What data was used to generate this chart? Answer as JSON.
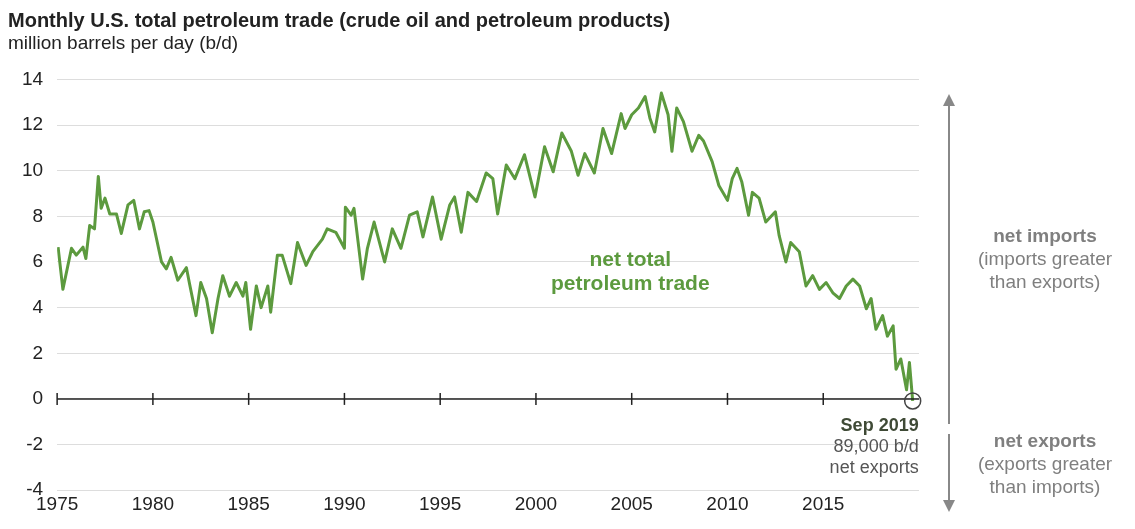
{
  "chart_data": {
    "type": "line",
    "title": "Monthly U.S. total petroleum trade (crude oil and petroleum products)",
    "ylabel": "million barrels per day (b/d)",
    "xlim": [
      1975,
      2020
    ],
    "xticks": [
      1975,
      1980,
      1985,
      1990,
      1995,
      2000,
      2005,
      2010,
      2015
    ],
    "ylim": [
      -4,
      14
    ],
    "yticks": [
      -4,
      -2,
      0,
      2,
      4,
      6,
      8,
      10,
      12,
      14
    ],
    "grid": "y",
    "legend": false,
    "ref_lines": [
      {
        "axis": "y",
        "value": 0,
        "label": null,
        "color": "#222222"
      }
    ],
    "annotations": [
      {
        "text": "Sep 2019\n89,000 b/d\nnet exports",
        "x": 2019.67,
        "y": -0.089
      },
      "net imports\n(imports greater\nthan exports)",
      "net exports\n(exports greater\nthan imports)"
    ],
    "series": [
      {
        "name": "net total\npetroleum trade",
        "color": "#5c9a3e",
        "x": [
          1975.05,
          1975.3,
          1975.75,
          1976.0,
          1976.35,
          1976.5,
          1976.7,
          1976.95,
          1977.15,
          1977.3,
          1977.5,
          1977.75,
          1978.1,
          1978.35,
          1978.7,
          1979.0,
          1979.3,
          1979.55,
          1979.8,
          1980.0,
          1980.45,
          1980.7,
          1980.95,
          1981.3,
          1981.75,
          1981.9,
          1982.25,
          1982.5,
          1982.8,
          1983.1,
          1983.4,
          1983.65,
          1984.0,
          1984.35,
          1984.7,
          1984.85,
          1985.1,
          1985.4,
          1985.65,
          1986.0,
          1986.15,
          1986.5,
          1986.75,
          1987.2,
          1987.55,
          1988.0,
          1988.35,
          1988.85,
          1989.1,
          1989.55,
          1990.0,
          1990.05,
          1990.35,
          1990.5,
          1990.95,
          1991.2,
          1991.55,
          1992.1,
          1992.5,
          1992.95,
          1993.4,
          1993.8,
          1994.1,
          1994.6,
          1995.05,
          1995.5,
          1995.75,
          1996.1,
          1996.45,
          1996.9,
          1997.4,
          1997.75,
          1998.0,
          1998.45,
          1998.9,
          1999.4,
          1999.95,
          2000.45,
          2000.9,
          2001.35,
          2001.85,
          2002.2,
          2002.55,
          2003.05,
          2003.5,
          2003.95,
          2004.45,
          2004.65,
          2005.0,
          2005.35,
          2005.7,
          2005.95,
          2006.2,
          2006.55,
          2006.9,
          2007.1,
          2007.35,
          2007.7,
          2008.15,
          2008.5,
          2008.75,
          2009.2,
          2009.55,
          2010.0,
          2010.25,
          2010.5,
          2010.75,
          2011.1,
          2011.3,
          2011.65,
          2012.0,
          2012.5,
          2012.7,
          2013.05,
          2013.3,
          2013.75,
          2014.1,
          2014.45,
          2014.8,
          2015.15,
          2015.5,
          2015.85,
          2016.2,
          2016.55,
          2016.9,
          2017.25,
          2017.5,
          2017.75,
          2018.1,
          2018.35,
          2018.65,
          2018.8,
          2019.05,
          2019.35,
          2019.5,
          2019.67
        ],
        "values": [
          6.65,
          4.8,
          6.6,
          6.3,
          6.65,
          6.15,
          7.6,
          7.45,
          9.75,
          8.35,
          8.8,
          8.1,
          8.1,
          7.25,
          8.5,
          8.7,
          7.45,
          8.2,
          8.25,
          7.75,
          6.0,
          5.7,
          6.2,
          5.2,
          5.75,
          5.1,
          3.65,
          5.1,
          4.4,
          2.9,
          4.4,
          5.4,
          4.5,
          5.1,
          4.5,
          5.1,
          3.05,
          4.95,
          4.0,
          4.95,
          3.8,
          6.3,
          6.3,
          5.05,
          6.85,
          5.85,
          6.45,
          7.0,
          7.45,
          7.3,
          6.6,
          8.4,
          8.05,
          8.35,
          5.25,
          6.6,
          7.75,
          6.0,
          7.45,
          6.6,
          8.05,
          8.2,
          7.1,
          8.85,
          7.0,
          8.5,
          8.85,
          7.3,
          9.05,
          8.65,
          9.9,
          9.65,
          8.1,
          10.25,
          9.65,
          10.7,
          8.85,
          11.05,
          9.95,
          11.65,
          10.85,
          9.8,
          10.75,
          9.9,
          11.85,
          10.75,
          12.5,
          11.85,
          12.45,
          12.75,
          13.25,
          12.3,
          11.7,
          13.4,
          12.45,
          10.85,
          12.75,
          12.15,
          10.85,
          11.55,
          11.3,
          10.4,
          9.35,
          8.7,
          9.65,
          10.1,
          9.5,
          8.05,
          9.05,
          8.8,
          7.75,
          8.2,
          7.15,
          6.0,
          6.85,
          6.45,
          4.95,
          5.4,
          4.8,
          5.1,
          4.65,
          4.4,
          4.95,
          5.25,
          4.95,
          3.95,
          4.4,
          3.05,
          3.65,
          2.75,
          3.2,
          1.3,
          1.75,
          0.4,
          1.6,
          -0.089
        ]
      }
    ]
  }
}
